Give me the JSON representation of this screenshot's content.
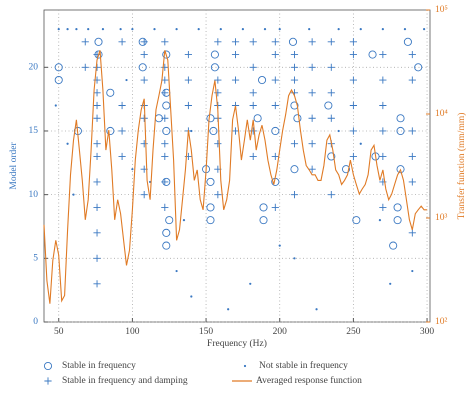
{
  "chart_data": {
    "type": "scatter",
    "xlabel": "Frequency (Hz)",
    "ylabel": "Model order",
    "y2label": "Transfer function (mm/mm)",
    "xlim": [
      40,
      302
    ],
    "xticks": [
      50,
      100,
      150,
      200,
      250,
      300
    ],
    "ylim": [
      0,
      24.5
    ],
    "yticks": [
      0,
      5,
      10,
      15,
      20
    ],
    "y2lim": [
      100,
      100000
    ],
    "y2scale": "log",
    "y2ticks": [
      {
        "value": 100,
        "label": "10²"
      },
      {
        "value": 1000,
        "label": "10³"
      },
      {
        "value": 10000,
        "label": "10⁴"
      },
      {
        "value": 100000,
        "label": "10⁵"
      }
    ],
    "grid": true,
    "series": [
      {
        "name": "Stable in frequency",
        "marker": "circle",
        "color": "#3a78c2",
        "x": [
          50,
          50,
          63,
          77,
          77,
          85,
          85,
          107,
          107,
          118,
          123,
          123,
          123,
          123,
          123,
          123,
          125,
          153,
          153,
          153,
          153,
          156,
          155,
          189,
          189,
          197,
          209,
          210,
          212,
          233,
          235,
          245,
          252,
          265,
          282,
          282,
          282,
          280,
          280,
          277,
          287,
          294,
          263,
          210,
          197,
          188,
          156,
          123,
          150,
          185
        ],
        "values": [
          20,
          19,
          15,
          22,
          21,
          18,
          15,
          22,
          20,
          16,
          18,
          17,
          15,
          11,
          7,
          6,
          8,
          16,
          11,
          9,
          8,
          21,
          15,
          9,
          8,
          15,
          22,
          17,
          16,
          17,
          13,
          12,
          8,
          13,
          16,
          15,
          12,
          9,
          8,
          6,
          22,
          20,
          21,
          12,
          11,
          19,
          20,
          21,
          12,
          16
        ]
      },
      {
        "name": "Stable in frequency and damping",
        "marker": "plus",
        "color": "#3a78c2",
        "x": [
          76,
          76,
          76,
          76,
          76,
          76,
          76,
          76,
          76,
          76,
          76,
          76,
          76,
          108,
          108,
          108,
          108,
          108,
          108,
          108,
          108,
          122,
          122,
          122,
          122,
          122,
          122,
          122,
          122,
          122,
          138,
          138,
          138,
          138,
          138,
          158,
          158,
          158,
          158,
          158,
          158,
          158,
          158,
          170,
          170,
          170,
          170,
          170,
          182,
          182,
          182,
          182,
          182,
          182,
          197,
          197,
          197,
          197,
          197,
          197,
          210,
          210,
          210,
          210,
          210,
          210,
          222,
          222,
          222,
          222,
          222,
          222,
          235,
          235,
          235,
          235,
          235,
          235,
          250,
          250,
          250,
          250,
          250,
          250,
          270,
          270,
          270,
          270,
          270,
          270,
          270,
          290,
          290,
          290,
          290,
          290,
          290,
          68,
          68,
          93,
          93,
          93,
          93
        ],
        "values": [
          3,
          5,
          7,
          9,
          11,
          13,
          14,
          16,
          17,
          18,
          19,
          20,
          21,
          10,
          12,
          14,
          16,
          17,
          19,
          21,
          22,
          9,
          11,
          13,
          14,
          16,
          18,
          19,
          20,
          22,
          13,
          15,
          17,
          19,
          21,
          10,
          12,
          14,
          16,
          17,
          18,
          19,
          22,
          15,
          17,
          19,
          21,
          22,
          13,
          15,
          17,
          18,
          20,
          22,
          9,
          13,
          17,
          19,
          21,
          22,
          10,
          14,
          18,
          19,
          20,
          21,
          12,
          14,
          16,
          18,
          20,
          22,
          10,
          14,
          16,
          18,
          20,
          22,
          13,
          15,
          17,
          19,
          21,
          22,
          9,
          11,
          13,
          15,
          17,
          19,
          21,
          7,
          11,
          13,
          15,
          19,
          21,
          20,
          22,
          13,
          15,
          17,
          22
        ]
      },
      {
        "name": "Not stable in frequency",
        "marker": "dot",
        "color": "#3a78c2",
        "x": [
          50,
          56,
          62,
          70,
          80,
          92,
          100,
          115,
          130,
          145,
          160,
          175,
          190,
          200,
          220,
          240,
          255,
          270,
          285,
          298,
          48,
          56,
          100,
          112,
          140,
          130,
          135,
          140,
          165,
          180,
          200,
          210,
          225,
          240,
          255,
          268,
          275,
          290,
          96,
          60
        ],
        "values": [
          23,
          23,
          23,
          23,
          23,
          23,
          23,
          23,
          23,
          23,
          23,
          23,
          23,
          23,
          23,
          23,
          23,
          23,
          23,
          23,
          17,
          14,
          12,
          11,
          15,
          4,
          8,
          2,
          1,
          3,
          6,
          5,
          1,
          15,
          14,
          8,
          3,
          4,
          19,
          10
        ]
      },
      {
        "name": "Averaged response function",
        "marker": "line",
        "axis": "y2",
        "color": "#e07b26",
        "x": [
          40,
          42,
          44,
          46,
          48,
          50,
          52,
          54,
          56,
          58,
          60,
          62,
          64,
          66,
          68,
          70,
          72,
          74,
          76,
          78,
          80,
          82,
          84,
          86,
          88,
          90,
          92,
          94,
          96,
          98,
          100,
          102,
          104,
          106,
          108,
          110,
          112,
          114,
          116,
          118,
          120,
          122,
          124,
          126,
          128,
          130,
          132,
          134,
          136,
          138,
          140,
          142,
          144,
          146,
          148,
          150,
          152,
          154,
          156,
          158,
          160,
          162,
          164,
          166,
          168,
          170,
          172,
          174,
          176,
          178,
          180,
          182,
          184,
          186,
          188,
          190,
          192,
          194,
          196,
          198,
          200,
          202,
          204,
          206,
          208,
          210,
          212,
          214,
          216,
          218,
          220,
          222,
          224,
          226,
          228,
          230,
          232,
          234,
          236,
          238,
          240,
          242,
          244,
          246,
          248,
          250,
          252,
          254,
          256,
          258,
          260,
          262,
          264,
          266,
          268,
          270,
          272,
          274,
          276,
          278,
          280,
          282,
          284,
          286,
          288,
          290,
          292,
          294,
          296,
          298,
          300
        ],
        "values": [
          860,
          250,
          150,
          390,
          610,
          440,
          160,
          180,
          770,
          2600,
          5600,
          8800,
          4500,
          2300,
          960,
          1500,
          4500,
          17000,
          33000,
          41000,
          17000,
          4500,
          7000,
          2900,
          960,
          1500,
          1100,
          610,
          350,
          490,
          1200,
          3600,
          7000,
          11000,
          14000,
          2300,
          1500,
          4500,
          11000,
          15000,
          21000,
          41000,
          33000,
          11000,
          3600,
          610,
          770,
          1500,
          2900,
          7000,
          4500,
          2300,
          2900,
          1500,
          1200,
          2900,
          8800,
          15000,
          21000,
          11000,
          2300,
          1200,
          1500,
          2300,
          8800,
          12000,
          7000,
          3600,
          5600,
          8800,
          5600,
          8800,
          4500,
          6300,
          7800,
          5600,
          3600,
          2600,
          2100,
          2900,
          4500,
          7000,
          9800,
          15000,
          17000,
          15000,
          12000,
          7000,
          4500,
          3200,
          2900,
          2600,
          2600,
          2300,
          2300,
          3200,
          5600,
          6300,
          4500,
          2900,
          2600,
          2100,
          2300,
          2600,
          3600,
          2600,
          2100,
          1700,
          1900,
          2100,
          2600,
          4500,
          5000,
          3200,
          2300,
          2900,
          1900,
          1500,
          1700,
          2100,
          2600,
          2900,
          2300,
          1500,
          960,
          770,
          1100,
          1200,
          1300,
          1200,
          1200
        ]
      }
    ]
  }
}
